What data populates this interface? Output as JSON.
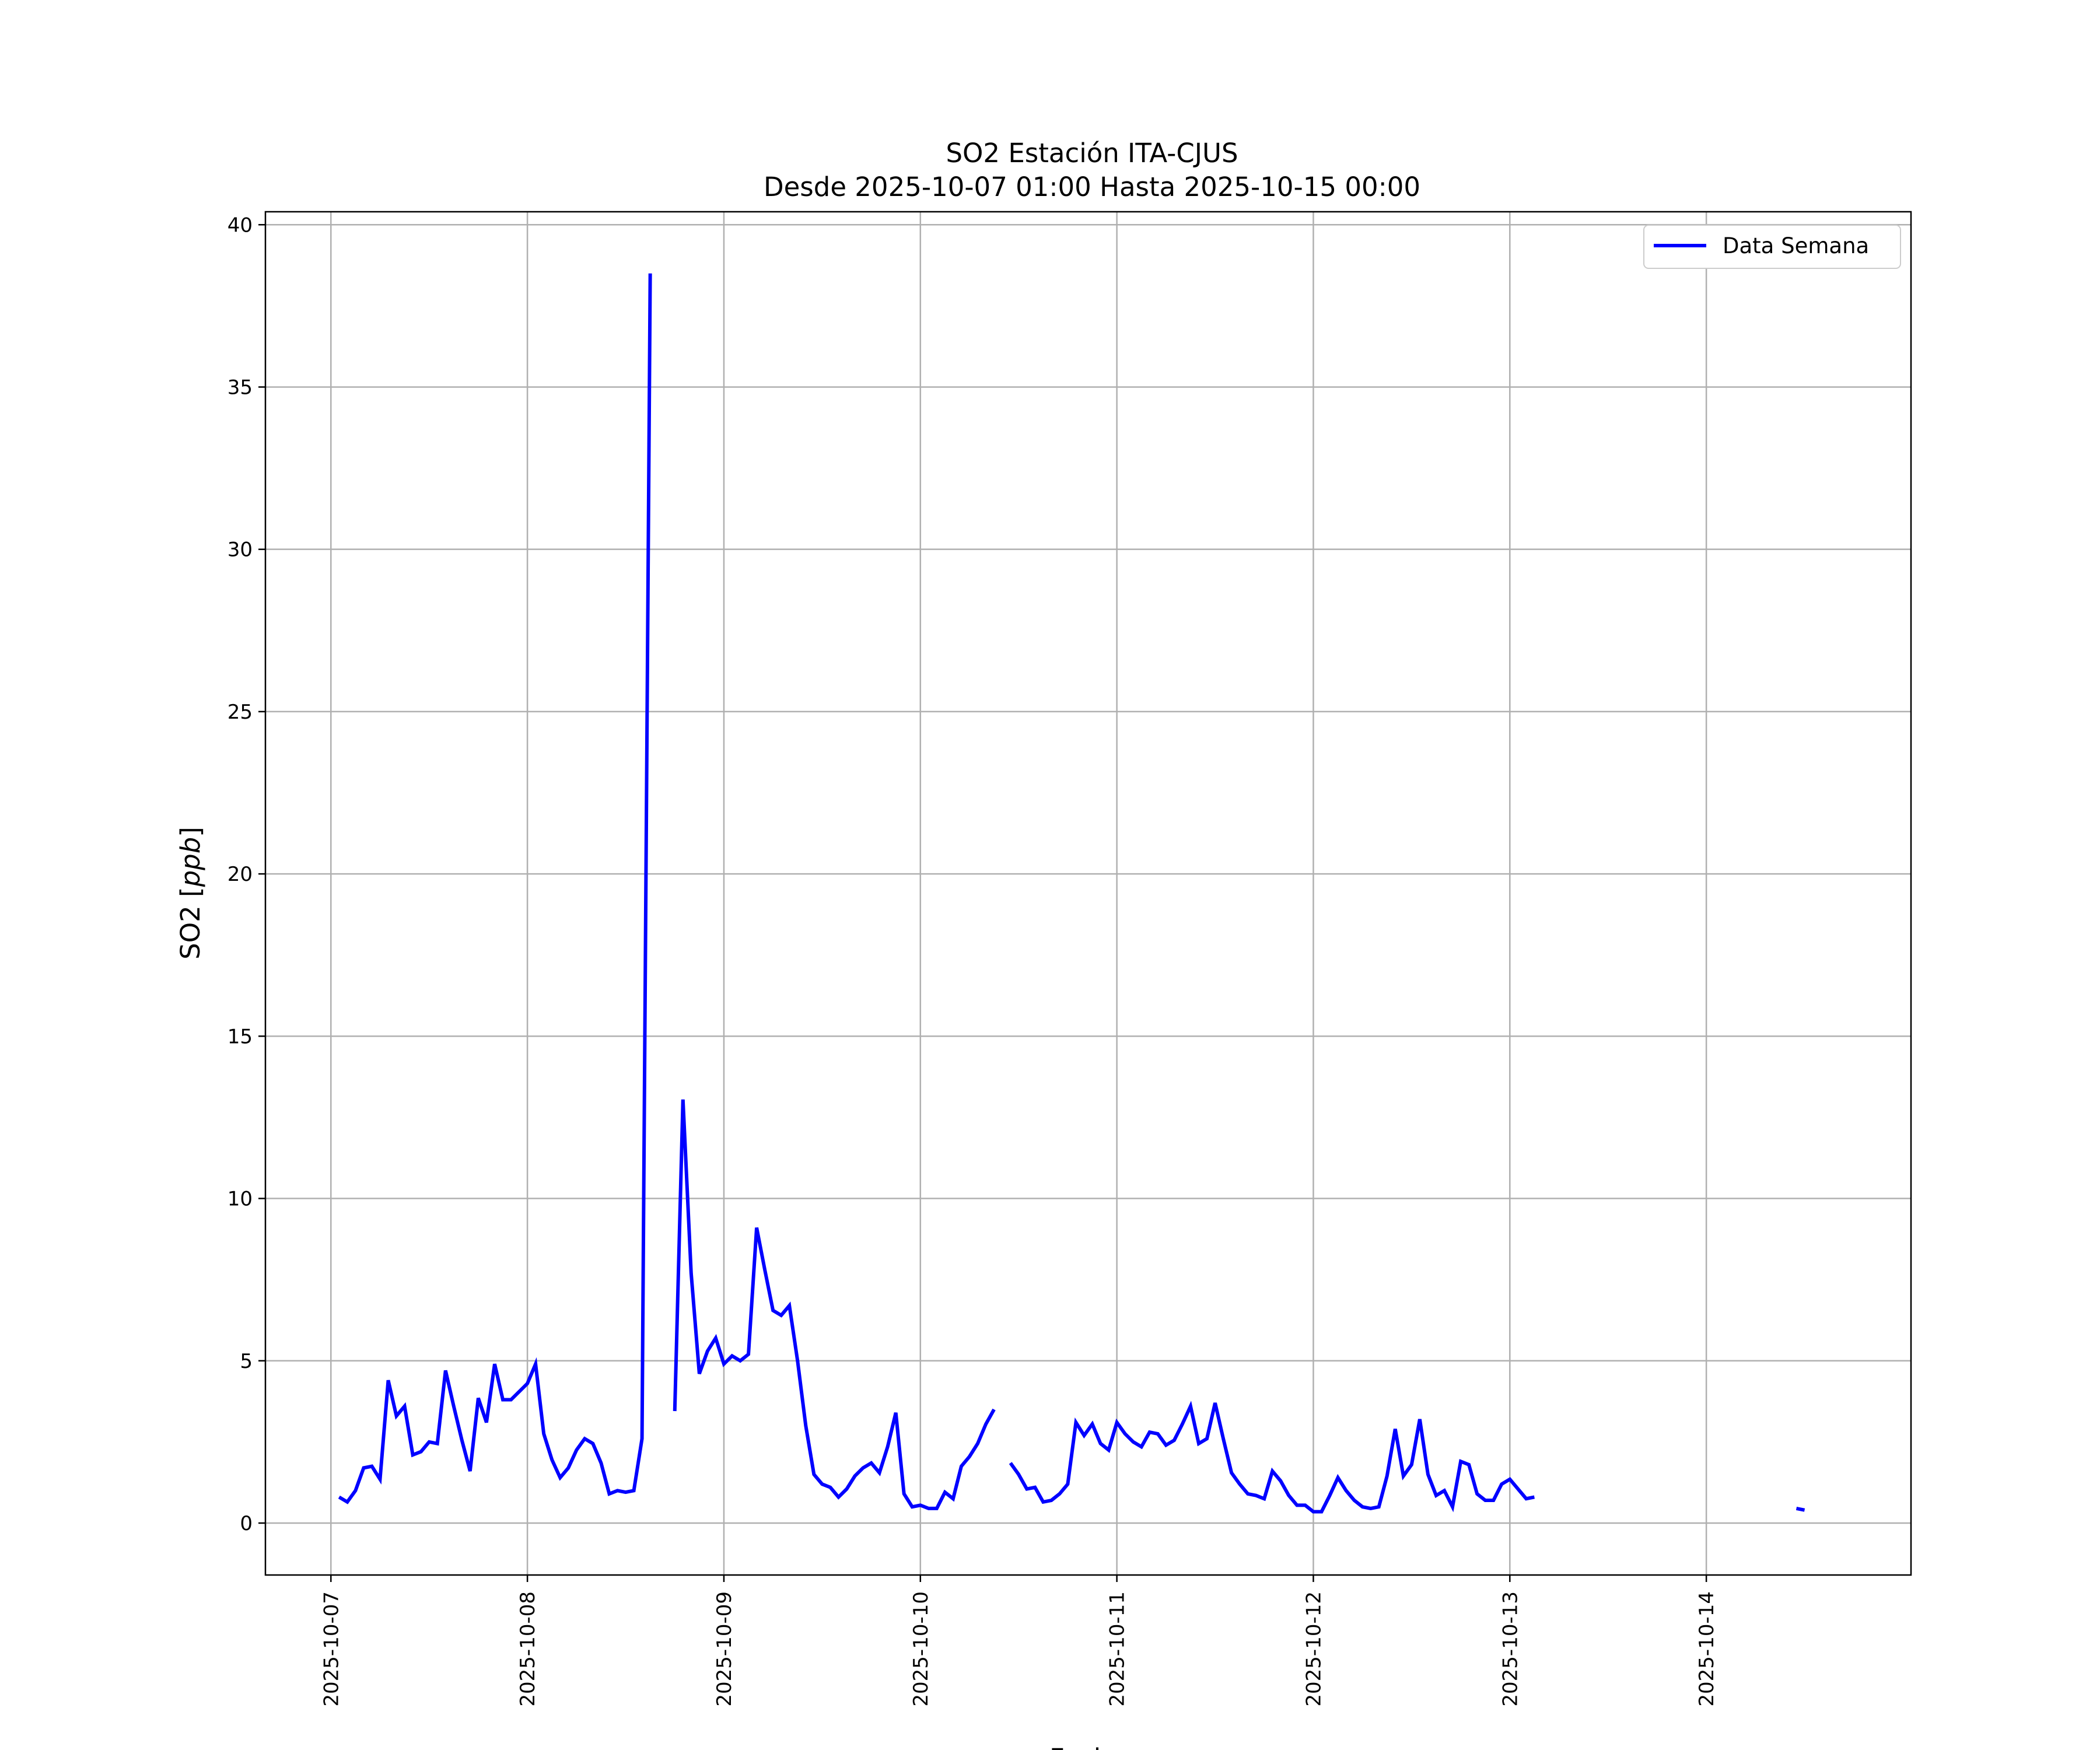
{
  "chart_data": {
    "type": "line",
    "title": "SO2 Estación ITA-CJUS",
    "subtitle": "Desde 2025-10-07 01:00 Hasta 2025-10-15 00:00",
    "xlabel": "Fecha",
    "ylabel": "SO2 [ppb]",
    "xlim": [
      "2025-10-06 16:00",
      "2025-10-15 01:00"
    ],
    "ylim": [
      -1.6,
      40.4
    ],
    "yticks": [
      0,
      5,
      10,
      15,
      20,
      25,
      30,
      35,
      40
    ],
    "xticks": [
      "2025-10-07",
      "2025-10-08",
      "2025-10-09",
      "2025-10-10",
      "2025-10-11",
      "2025-10-12",
      "2025-10-13",
      "2025-10-14"
    ],
    "grid": true,
    "legend_position": "top-right",
    "colors": {
      "series": "#0000ff",
      "grid": "#b0b0b0"
    },
    "series": [
      {
        "name": "Data Semana",
        "color": "#0000ff",
        "points": [
          [
            "2025-10-07 01:00",
            0.8
          ],
          [
            "2025-10-07 02:00",
            0.65
          ],
          [
            "2025-10-07 03:00",
            1.0
          ],
          [
            "2025-10-07 04:00",
            1.7
          ],
          [
            "2025-10-07 05:00",
            1.75
          ],
          [
            "2025-10-07 06:00",
            1.35
          ],
          [
            "2025-10-07 07:00",
            4.4
          ],
          [
            "2025-10-07 08:00",
            3.3
          ],
          [
            "2025-10-07 09:00",
            3.6
          ],
          [
            "2025-10-07 10:00",
            2.1
          ],
          [
            "2025-10-07 11:00",
            2.2
          ],
          [
            "2025-10-07 12:00",
            2.5
          ],
          [
            "2025-10-07 13:00",
            2.45
          ],
          [
            "2025-10-07 14:00",
            4.7
          ],
          [
            "2025-10-07 15:00",
            3.6
          ],
          [
            "2025-10-07 16:00",
            2.55
          ],
          [
            "2025-10-07 17:00",
            1.6
          ],
          [
            "2025-10-07 18:00",
            3.85
          ],
          [
            "2025-10-07 19:00",
            3.1
          ],
          [
            "2025-10-07 20:00",
            4.9
          ],
          [
            "2025-10-07 21:00",
            3.8
          ],
          [
            "2025-10-07 22:00",
            3.8
          ],
          [
            "2025-10-07 23:00",
            4.05
          ],
          [
            "2025-10-08 00:00",
            4.3
          ],
          [
            "2025-10-08 01:00",
            4.9
          ],
          [
            "2025-10-08 02:00",
            2.75
          ],
          [
            "2025-10-08 03:00",
            1.95
          ],
          [
            "2025-10-08 04:00",
            1.4
          ],
          [
            "2025-10-08 05:00",
            1.7
          ],
          [
            "2025-10-08 06:00",
            2.25
          ],
          [
            "2025-10-08 07:00",
            2.6
          ],
          [
            "2025-10-08 08:00",
            2.45
          ],
          [
            "2025-10-08 09:00",
            1.85
          ],
          [
            "2025-10-08 10:00",
            0.9
          ],
          [
            "2025-10-08 11:00",
            1.0
          ],
          [
            "2025-10-08 12:00",
            0.95
          ],
          [
            "2025-10-08 13:00",
            1.0
          ],
          [
            "2025-10-08 14:00",
            2.6
          ],
          [
            "2025-10-08 15:00",
            38.5
          ],
          [
            "2025-10-08 16:00",
            null
          ],
          [
            "2025-10-08 17:00",
            null
          ],
          [
            "2025-10-08 18:00",
            3.45
          ],
          [
            "2025-10-08 19:00",
            13.05
          ],
          [
            "2025-10-08 20:00",
            7.7
          ],
          [
            "2025-10-08 21:00",
            4.6
          ],
          [
            "2025-10-08 22:00",
            5.3
          ],
          [
            "2025-10-08 23:00",
            5.7
          ],
          [
            "2025-10-09 00:00",
            4.9
          ],
          [
            "2025-10-09 01:00",
            5.15
          ],
          [
            "2025-10-09 02:00",
            5.0
          ],
          [
            "2025-10-09 03:00",
            5.2
          ],
          [
            "2025-10-09 04:00",
            9.1
          ],
          [
            "2025-10-09 05:00",
            7.8
          ],
          [
            "2025-10-09 06:00",
            6.55
          ],
          [
            "2025-10-09 07:00",
            6.4
          ],
          [
            "2025-10-09 08:00",
            6.7
          ],
          [
            "2025-10-09 09:00",
            5.0
          ],
          [
            "2025-10-09 10:00",
            3.0
          ],
          [
            "2025-10-09 11:00",
            1.5
          ],
          [
            "2025-10-09 12:00",
            1.2
          ],
          [
            "2025-10-09 13:00",
            1.1
          ],
          [
            "2025-10-09 14:00",
            0.8
          ],
          [
            "2025-10-09 15:00",
            1.05
          ],
          [
            "2025-10-09 16:00",
            1.45
          ],
          [
            "2025-10-09 17:00",
            1.7
          ],
          [
            "2025-10-09 18:00",
            1.85
          ],
          [
            "2025-10-09 19:00",
            1.55
          ],
          [
            "2025-10-09 20:00",
            2.35
          ],
          [
            "2025-10-09 21:00",
            3.4
          ],
          [
            "2025-10-09 22:00",
            0.9
          ],
          [
            "2025-10-09 23:00",
            0.5
          ],
          [
            "2025-10-10 00:00",
            0.55
          ],
          [
            "2025-10-10 01:00",
            0.45
          ],
          [
            "2025-10-10 02:00",
            0.45
          ],
          [
            "2025-10-10 03:00",
            0.95
          ],
          [
            "2025-10-10 04:00",
            0.75
          ],
          [
            "2025-10-10 05:00",
            1.75
          ],
          [
            "2025-10-10 06:00",
            2.05
          ],
          [
            "2025-10-10 07:00",
            2.45
          ],
          [
            "2025-10-10 08:00",
            3.05
          ],
          [
            "2025-10-10 09:00",
            3.5
          ],
          [
            "2025-10-10 10:00",
            null
          ],
          [
            "2025-10-10 11:00",
            1.85
          ],
          [
            "2025-10-10 12:00",
            1.5
          ],
          [
            "2025-10-10 13:00",
            1.05
          ],
          [
            "2025-10-10 14:00",
            1.1
          ],
          [
            "2025-10-10 15:00",
            0.65
          ],
          [
            "2025-10-10 16:00",
            0.7
          ],
          [
            "2025-10-10 17:00",
            0.9
          ],
          [
            "2025-10-10 18:00",
            1.2
          ],
          [
            "2025-10-10 19:00",
            3.1
          ],
          [
            "2025-10-10 20:00",
            2.7
          ],
          [
            "2025-10-10 21:00",
            3.05
          ],
          [
            "2025-10-10 22:00",
            2.45
          ],
          [
            "2025-10-10 23:00",
            2.25
          ],
          [
            "2025-10-11 00:00",
            3.1
          ],
          [
            "2025-10-11 01:00",
            2.75
          ],
          [
            "2025-10-11 02:00",
            2.5
          ],
          [
            "2025-10-11 03:00",
            2.35
          ],
          [
            "2025-10-11 04:00",
            2.8
          ],
          [
            "2025-10-11 05:00",
            2.75
          ],
          [
            "2025-10-11 06:00",
            2.4
          ],
          [
            "2025-10-11 07:00",
            2.55
          ],
          [
            "2025-10-11 08:00",
            3.05
          ],
          [
            "2025-10-11 09:00",
            3.6
          ],
          [
            "2025-10-11 10:00",
            2.45
          ],
          [
            "2025-10-11 11:00",
            2.6
          ],
          [
            "2025-10-11 12:00",
            3.7
          ],
          [
            "2025-10-11 13:00",
            2.6
          ],
          [
            "2025-10-11 14:00",
            1.55
          ],
          [
            "2025-10-11 15:00",
            1.2
          ],
          [
            "2025-10-11 16:00",
            0.9
          ],
          [
            "2025-10-11 17:00",
            0.85
          ],
          [
            "2025-10-11 18:00",
            0.75
          ],
          [
            "2025-10-11 19:00",
            1.6
          ],
          [
            "2025-10-11 20:00",
            1.3
          ],
          [
            "2025-10-11 21:00",
            0.85
          ],
          [
            "2025-10-11 22:00",
            0.55
          ],
          [
            "2025-10-11 23:00",
            0.55
          ],
          [
            "2025-10-12 00:00",
            0.35
          ],
          [
            "2025-10-12 01:00",
            0.35
          ],
          [
            "2025-10-12 02:00",
            0.85
          ],
          [
            "2025-10-12 03:00",
            1.4
          ],
          [
            "2025-10-12 04:00",
            1.0
          ],
          [
            "2025-10-12 05:00",
            0.7
          ],
          [
            "2025-10-12 06:00",
            0.5
          ],
          [
            "2025-10-12 07:00",
            0.45
          ],
          [
            "2025-10-12 08:00",
            0.5
          ],
          [
            "2025-10-12 09:00",
            1.45
          ],
          [
            "2025-10-12 10:00",
            2.9
          ],
          [
            "2025-10-12 11:00",
            1.45
          ],
          [
            "2025-10-12 12:00",
            1.8
          ],
          [
            "2025-10-12 13:00",
            3.2
          ],
          [
            "2025-10-12 14:00",
            1.5
          ],
          [
            "2025-10-12 15:00",
            0.85
          ],
          [
            "2025-10-12 16:00",
            1.0
          ],
          [
            "2025-10-12 17:00",
            0.5
          ],
          [
            "2025-10-12 18:00",
            1.9
          ],
          [
            "2025-10-12 19:00",
            1.8
          ],
          [
            "2025-10-12 20:00",
            0.9
          ],
          [
            "2025-10-12 21:00",
            0.7
          ],
          [
            "2025-10-12 22:00",
            0.7
          ],
          [
            "2025-10-12 23:00",
            1.2
          ],
          [
            "2025-10-13 00:00",
            1.35
          ],
          [
            "2025-10-13 01:00",
            1.05
          ],
          [
            "2025-10-13 02:00",
            0.75
          ],
          [
            "2025-10-13 03:00",
            0.8
          ],
          [
            "2025-10-13 04:00",
            null
          ],
          [
            "2025-10-14 11:00",
            0.45
          ],
          [
            "2025-10-14 12:00",
            0.4
          ]
        ]
      }
    ]
  }
}
